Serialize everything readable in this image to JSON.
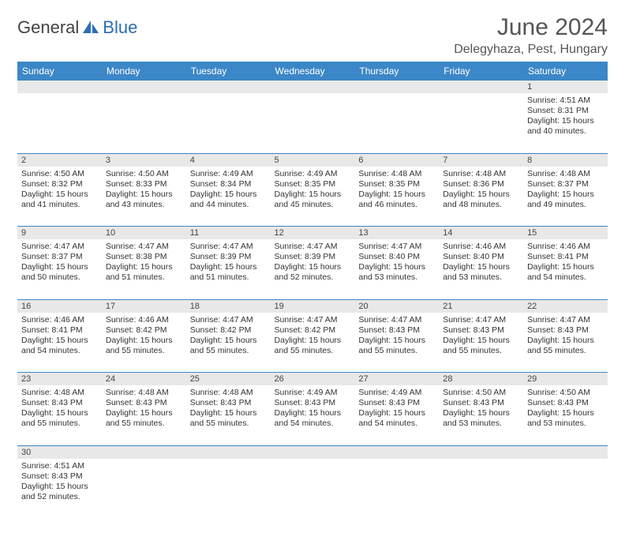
{
  "brand": {
    "part1": "General",
    "part2": "Blue"
  },
  "title": "June 2024",
  "location": "Delegyhaza, Pest, Hungary",
  "colors": {
    "header_bg": "#3c87c7",
    "header_text": "#ffffff",
    "daynum_bg": "#e8e8e8",
    "border": "#3c87c7",
    "logo_blue": "#2d6db3",
    "text": "#333333"
  },
  "daysOfWeek": [
    "Sunday",
    "Monday",
    "Tuesday",
    "Wednesday",
    "Thursday",
    "Friday",
    "Saturday"
  ],
  "weeks": [
    [
      null,
      null,
      null,
      null,
      null,
      null,
      {
        "n": "1",
        "sunrise": "Sunrise: 4:51 AM",
        "sunset": "Sunset: 8:31 PM",
        "day1": "Daylight: 15 hours",
        "day2": "and 40 minutes."
      }
    ],
    [
      {
        "n": "2",
        "sunrise": "Sunrise: 4:50 AM",
        "sunset": "Sunset: 8:32 PM",
        "day1": "Daylight: 15 hours",
        "day2": "and 41 minutes."
      },
      {
        "n": "3",
        "sunrise": "Sunrise: 4:50 AM",
        "sunset": "Sunset: 8:33 PM",
        "day1": "Daylight: 15 hours",
        "day2": "and 43 minutes."
      },
      {
        "n": "4",
        "sunrise": "Sunrise: 4:49 AM",
        "sunset": "Sunset: 8:34 PM",
        "day1": "Daylight: 15 hours",
        "day2": "and 44 minutes."
      },
      {
        "n": "5",
        "sunrise": "Sunrise: 4:49 AM",
        "sunset": "Sunset: 8:35 PM",
        "day1": "Daylight: 15 hours",
        "day2": "and 45 minutes."
      },
      {
        "n": "6",
        "sunrise": "Sunrise: 4:48 AM",
        "sunset": "Sunset: 8:35 PM",
        "day1": "Daylight: 15 hours",
        "day2": "and 46 minutes."
      },
      {
        "n": "7",
        "sunrise": "Sunrise: 4:48 AM",
        "sunset": "Sunset: 8:36 PM",
        "day1": "Daylight: 15 hours",
        "day2": "and 48 minutes."
      },
      {
        "n": "8",
        "sunrise": "Sunrise: 4:48 AM",
        "sunset": "Sunset: 8:37 PM",
        "day1": "Daylight: 15 hours",
        "day2": "and 49 minutes."
      }
    ],
    [
      {
        "n": "9",
        "sunrise": "Sunrise: 4:47 AM",
        "sunset": "Sunset: 8:37 PM",
        "day1": "Daylight: 15 hours",
        "day2": "and 50 minutes."
      },
      {
        "n": "10",
        "sunrise": "Sunrise: 4:47 AM",
        "sunset": "Sunset: 8:38 PM",
        "day1": "Daylight: 15 hours",
        "day2": "and 51 minutes."
      },
      {
        "n": "11",
        "sunrise": "Sunrise: 4:47 AM",
        "sunset": "Sunset: 8:39 PM",
        "day1": "Daylight: 15 hours",
        "day2": "and 51 minutes."
      },
      {
        "n": "12",
        "sunrise": "Sunrise: 4:47 AM",
        "sunset": "Sunset: 8:39 PM",
        "day1": "Daylight: 15 hours",
        "day2": "and 52 minutes."
      },
      {
        "n": "13",
        "sunrise": "Sunrise: 4:47 AM",
        "sunset": "Sunset: 8:40 PM",
        "day1": "Daylight: 15 hours",
        "day2": "and 53 minutes."
      },
      {
        "n": "14",
        "sunrise": "Sunrise: 4:46 AM",
        "sunset": "Sunset: 8:40 PM",
        "day1": "Daylight: 15 hours",
        "day2": "and 53 minutes."
      },
      {
        "n": "15",
        "sunrise": "Sunrise: 4:46 AM",
        "sunset": "Sunset: 8:41 PM",
        "day1": "Daylight: 15 hours",
        "day2": "and 54 minutes."
      }
    ],
    [
      {
        "n": "16",
        "sunrise": "Sunrise: 4:46 AM",
        "sunset": "Sunset: 8:41 PM",
        "day1": "Daylight: 15 hours",
        "day2": "and 54 minutes."
      },
      {
        "n": "17",
        "sunrise": "Sunrise: 4:46 AM",
        "sunset": "Sunset: 8:42 PM",
        "day1": "Daylight: 15 hours",
        "day2": "and 55 minutes."
      },
      {
        "n": "18",
        "sunrise": "Sunrise: 4:47 AM",
        "sunset": "Sunset: 8:42 PM",
        "day1": "Daylight: 15 hours",
        "day2": "and 55 minutes."
      },
      {
        "n": "19",
        "sunrise": "Sunrise: 4:47 AM",
        "sunset": "Sunset: 8:42 PM",
        "day1": "Daylight: 15 hours",
        "day2": "and 55 minutes."
      },
      {
        "n": "20",
        "sunrise": "Sunrise: 4:47 AM",
        "sunset": "Sunset: 8:43 PM",
        "day1": "Daylight: 15 hours",
        "day2": "and 55 minutes."
      },
      {
        "n": "21",
        "sunrise": "Sunrise: 4:47 AM",
        "sunset": "Sunset: 8:43 PM",
        "day1": "Daylight: 15 hours",
        "day2": "and 55 minutes."
      },
      {
        "n": "22",
        "sunrise": "Sunrise: 4:47 AM",
        "sunset": "Sunset: 8:43 PM",
        "day1": "Daylight: 15 hours",
        "day2": "and 55 minutes."
      }
    ],
    [
      {
        "n": "23",
        "sunrise": "Sunrise: 4:48 AM",
        "sunset": "Sunset: 8:43 PM",
        "day1": "Daylight: 15 hours",
        "day2": "and 55 minutes."
      },
      {
        "n": "24",
        "sunrise": "Sunrise: 4:48 AM",
        "sunset": "Sunset: 8:43 PM",
        "day1": "Daylight: 15 hours",
        "day2": "and 55 minutes."
      },
      {
        "n": "25",
        "sunrise": "Sunrise: 4:48 AM",
        "sunset": "Sunset: 8:43 PM",
        "day1": "Daylight: 15 hours",
        "day2": "and 55 minutes."
      },
      {
        "n": "26",
        "sunrise": "Sunrise: 4:49 AM",
        "sunset": "Sunset: 8:43 PM",
        "day1": "Daylight: 15 hours",
        "day2": "and 54 minutes."
      },
      {
        "n": "27",
        "sunrise": "Sunrise: 4:49 AM",
        "sunset": "Sunset: 8:43 PM",
        "day1": "Daylight: 15 hours",
        "day2": "and 54 minutes."
      },
      {
        "n": "28",
        "sunrise": "Sunrise: 4:50 AM",
        "sunset": "Sunset: 8:43 PM",
        "day1": "Daylight: 15 hours",
        "day2": "and 53 minutes."
      },
      {
        "n": "29",
        "sunrise": "Sunrise: 4:50 AM",
        "sunset": "Sunset: 8:43 PM",
        "day1": "Daylight: 15 hours",
        "day2": "and 53 minutes."
      }
    ],
    [
      {
        "n": "30",
        "sunrise": "Sunrise: 4:51 AM",
        "sunset": "Sunset: 8:43 PM",
        "day1": "Daylight: 15 hours",
        "day2": "and 52 minutes."
      },
      null,
      null,
      null,
      null,
      null,
      null
    ]
  ]
}
